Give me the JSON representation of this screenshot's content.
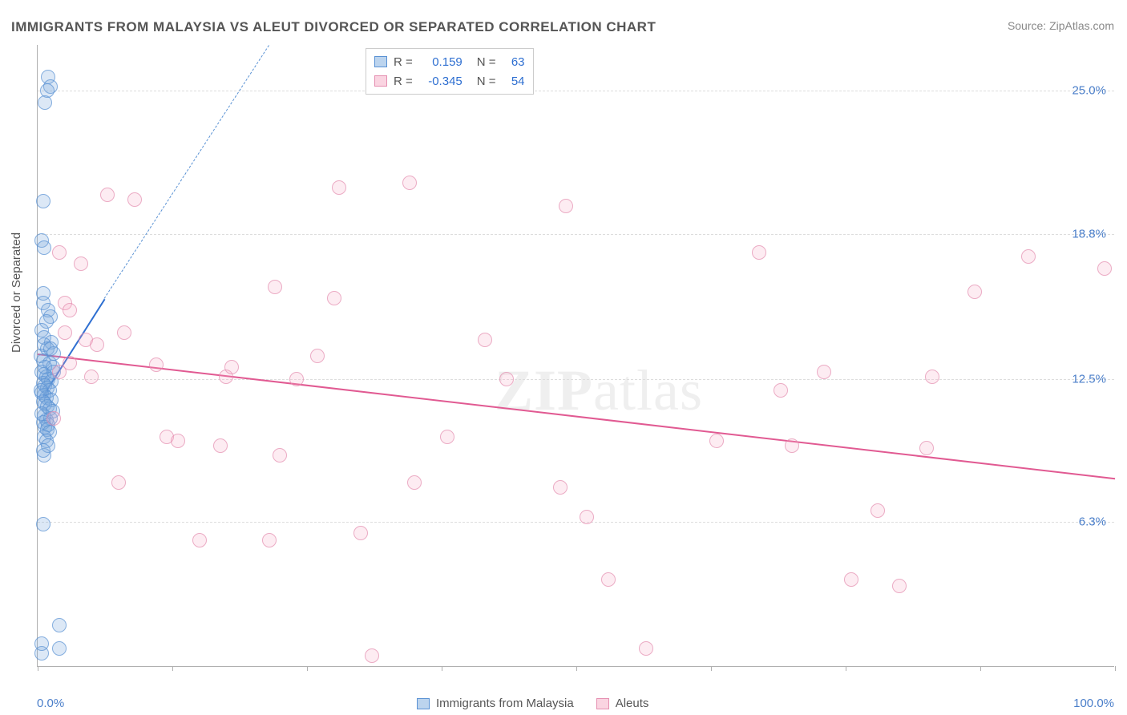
{
  "title": "IMMIGRANTS FROM MALAYSIA VS ALEUT DIVORCED OR SEPARATED CORRELATION CHART",
  "source_prefix": "Source: ",
  "source_name": "ZipAtlas.com",
  "watermark_zip": "ZIP",
  "watermark_atlas": "atlas",
  "chart": {
    "type": "scatter",
    "xlim": [
      0.0,
      100.0
    ],
    "ylim": [
      0.0,
      27.0
    ],
    "x_tick_positions": [
      0,
      12.5,
      25,
      37.5,
      50,
      62.5,
      75,
      87.5,
      100
    ],
    "y_ticks": [
      {
        "v": 6.3,
        "label": "6.3%"
      },
      {
        "v": 12.5,
        "label": "12.5%"
      },
      {
        "v": 18.8,
        "label": "18.8%"
      },
      {
        "v": 25.0,
        "label": "25.0%"
      }
    ],
    "x_label_min": "0.0%",
    "x_label_max": "100.0%",
    "y_axis_title": "Divorced or Separated",
    "background_color": "#ffffff",
    "grid_color": "#dddddd",
    "marker_radius": 9,
    "series": [
      {
        "name": "Immigrants from Malaysia",
        "color_fill": "rgba(122,170,222,0.35)",
        "color_stroke": "#5a92d4",
        "css": "blue-m",
        "R": "0.159",
        "N": "63",
        "regression": {
          "x1": 0.5,
          "y1": 11.8,
          "x2": 6.2,
          "y2": 16.0,
          "color": "#2e6fd1"
        },
        "regression_ext_dashed": {
          "x1": 6.2,
          "y1": 16.0,
          "x2": 21.5,
          "y2": 27.0
        },
        "points": [
          [
            0.4,
            0.6
          ],
          [
            2.0,
            0.8
          ],
          [
            0.4,
            1.0
          ],
          [
            2.0,
            1.8
          ],
          [
            0.5,
            6.2
          ],
          [
            0.6,
            9.2
          ],
          [
            1.0,
            25.6
          ],
          [
            1.2,
            25.2
          ],
          [
            0.9,
            25.0
          ],
          [
            0.7,
            24.5
          ],
          [
            0.5,
            20.2
          ],
          [
            0.4,
            18.5
          ],
          [
            0.6,
            18.2
          ],
          [
            0.5,
            16.2
          ],
          [
            0.5,
            15.8
          ],
          [
            1.0,
            15.5
          ],
          [
            1.2,
            15.2
          ],
          [
            0.8,
            15.0
          ],
          [
            0.4,
            14.6
          ],
          [
            0.6,
            14.3
          ],
          [
            1.3,
            14.1
          ],
          [
            0.6,
            14.0
          ],
          [
            0.9,
            13.8
          ],
          [
            1.5,
            13.6
          ],
          [
            0.3,
            13.5
          ],
          [
            0.5,
            13.3
          ],
          [
            1.1,
            13.2
          ],
          [
            1.4,
            13.0
          ],
          [
            0.4,
            12.8
          ],
          [
            0.6,
            12.7
          ],
          [
            0.8,
            12.6
          ],
          [
            1.0,
            12.5
          ],
          [
            1.3,
            12.4
          ],
          [
            0.5,
            12.3
          ],
          [
            0.7,
            12.2
          ],
          [
            0.9,
            12.1
          ],
          [
            1.1,
            12.0
          ],
          [
            0.4,
            11.9
          ],
          [
            0.6,
            11.8
          ],
          [
            0.8,
            11.7
          ],
          [
            1.3,
            11.6
          ],
          [
            0.5,
            11.5
          ],
          [
            0.7,
            11.4
          ],
          [
            0.9,
            11.3
          ],
          [
            1.1,
            11.2
          ],
          [
            0.6,
            10.9
          ],
          [
            0.8,
            10.7
          ],
          [
            1.0,
            10.5
          ],
          [
            0.4,
            11.0
          ],
          [
            1.2,
            10.8
          ],
          [
            0.5,
            10.6
          ],
          [
            0.7,
            10.4
          ],
          [
            0.9,
            10.3
          ],
          [
            1.4,
            11.1
          ],
          [
            1.1,
            10.2
          ],
          [
            0.6,
            10.0
          ],
          [
            0.8,
            9.8
          ],
          [
            1.0,
            9.6
          ],
          [
            0.5,
            9.4
          ],
          [
            1.2,
            13.8
          ],
          [
            0.7,
            13.0
          ],
          [
            1.5,
            12.8
          ],
          [
            0.3,
            12.0
          ]
        ]
      },
      {
        "name": "Aleuts",
        "color_fill": "rgba(245,170,195,0.30)",
        "color_stroke": "#e58fb1",
        "css": "pink-m",
        "R": "-0.345",
        "N": "54",
        "regression": {
          "x1": 0.0,
          "y1": 13.6,
          "x2": 100.0,
          "y2": 8.2,
          "color": "#e15a92"
        },
        "points": [
          [
            2.0,
            18.0
          ],
          [
            4.0,
            17.5
          ],
          [
            2.5,
            15.8
          ],
          [
            3.0,
            15.5
          ],
          [
            2.5,
            14.5
          ],
          [
            4.5,
            14.2
          ],
          [
            5.5,
            14.0
          ],
          [
            3.0,
            13.2
          ],
          [
            2.0,
            12.8
          ],
          [
            5.0,
            12.6
          ],
          [
            1.5,
            10.8
          ],
          [
            6.5,
            20.5
          ],
          [
            9.0,
            20.3
          ],
          [
            8.0,
            14.5
          ],
          [
            11.0,
            13.1
          ],
          [
            7.5,
            8.0
          ],
          [
            12.0,
            10.0
          ],
          [
            13.0,
            9.8
          ],
          [
            15.0,
            5.5
          ],
          [
            17.5,
            12.6
          ],
          [
            17.0,
            9.6
          ],
          [
            18.0,
            13.0
          ],
          [
            22.0,
            16.5
          ],
          [
            22.5,
            9.2
          ],
          [
            21.5,
            5.5
          ],
          [
            24.0,
            12.5
          ],
          [
            28.0,
            20.8
          ],
          [
            27.5,
            16.0
          ],
          [
            26.0,
            13.5
          ],
          [
            30.0,
            5.8
          ],
          [
            31.0,
            0.5
          ],
          [
            34.5,
            21.0
          ],
          [
            35.0,
            8.0
          ],
          [
            38.0,
            10.0
          ],
          [
            41.5,
            14.2
          ],
          [
            43.5,
            12.5
          ],
          [
            48.5,
            7.8
          ],
          [
            49.0,
            20.0
          ],
          [
            51.0,
            6.5
          ],
          [
            53.0,
            3.8
          ],
          [
            56.5,
            0.8
          ],
          [
            63.0,
            9.8
          ],
          [
            67.0,
            18.0
          ],
          [
            69.0,
            12.0
          ],
          [
            70.0,
            9.6
          ],
          [
            73.0,
            12.8
          ],
          [
            75.5,
            3.8
          ],
          [
            78.0,
            6.8
          ],
          [
            80.0,
            3.5
          ],
          [
            83.0,
            12.6
          ],
          [
            82.5,
            9.5
          ],
          [
            87.0,
            16.3
          ],
          [
            92.0,
            17.8
          ],
          [
            99.0,
            17.3
          ]
        ]
      }
    ]
  },
  "stats_labels": {
    "R": "R =",
    "N": "N ="
  },
  "legend_items": [
    "Immigrants from Malaysia",
    "Aleuts"
  ]
}
